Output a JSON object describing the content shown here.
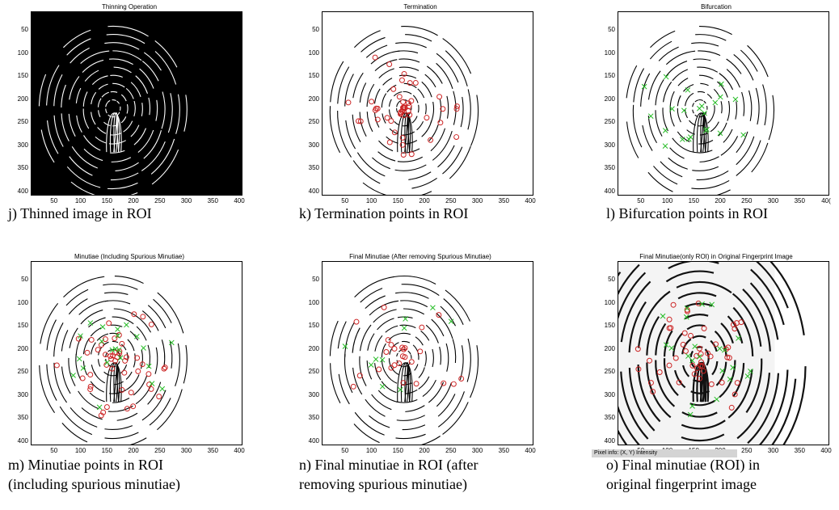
{
  "panels": [
    {
      "id": "j",
      "title": "Thinning Operation",
      "caption": [
        "j) Thinned image in ROI"
      ],
      "bg": "#000000",
      "ridge": "#ffffff"
    },
    {
      "id": "k",
      "title": "Termination",
      "caption": [
        "k) Termination points in ROI"
      ],
      "bg": "#ffffff",
      "ridge": "#000000"
    },
    {
      "id": "l",
      "title": "Bifurcation",
      "caption": [
        "l) Bifurcation points in ROI"
      ],
      "bg": "#ffffff",
      "ridge": "#000000"
    },
    {
      "id": "m",
      "title": "Minutiae (Including Spurious Minutiae)",
      "caption": [
        "m) Minutiae points in ROI",
        "(including spurious minutiae)"
      ],
      "bg": "#ffffff",
      "ridge": "#000000"
    },
    {
      "id": "n",
      "title": "Final Minutiae (After removing Spurious Minutiae)",
      "caption": [
        "n) Final minutiae in ROI (after",
        "removing spurious minutiae)"
      ],
      "bg": "#ffffff",
      "ridge": "#000000"
    },
    {
      "id": "o",
      "title": "Final Minutiae(only ROI) in Original Fingerprint Image",
      "caption": [
        "o) Final minutiae (ROI) in",
        "original fingerprint image"
      ],
      "bg": "#ffffff",
      "ridge": "#111111"
    }
  ],
  "y_ticks": [
    "50",
    "100",
    "150",
    "200",
    "250",
    "300",
    "350",
    "400"
  ],
  "x_ticks": [
    "50",
    "100",
    "150",
    "200",
    "250",
    "300",
    "350",
    "400"
  ],
  "l_x_ticks": [
    "50",
    "100",
    "150",
    "200",
    "250",
    "300",
    "350",
    "40("
  ],
  "pixel_info": "Pixel info: (X, Y)  Intensity",
  "colors": {
    "termination": "#cc2222",
    "bifurcation": "#22bb22"
  }
}
